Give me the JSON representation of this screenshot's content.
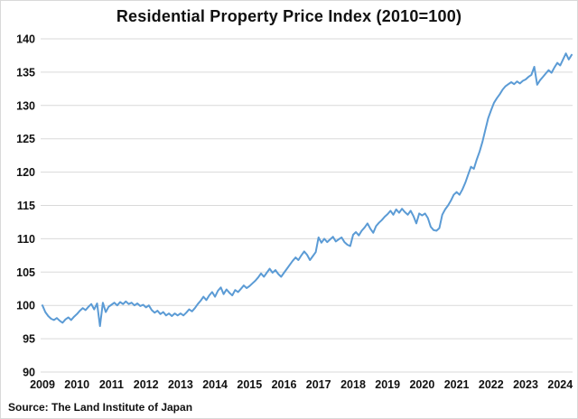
{
  "chart_data": {
    "type": "line",
    "title": "Residential Property Price Index (2010=100)",
    "xlabel": "",
    "ylabel": "",
    "ylim": [
      90,
      140
    ],
    "y_ticks": [
      90,
      95,
      100,
      105,
      110,
      115,
      120,
      125,
      130,
      135,
      140
    ],
    "x_ticks": [
      2009,
      2010,
      2011,
      2012,
      2013,
      2014,
      2015,
      2016,
      2017,
      2018,
      2019,
      2020,
      2021,
      2022,
      2023,
      2024
    ],
    "grid": "horizontal",
    "legend": "none",
    "series": [
      {
        "name": "Residential Property Price Index",
        "color": "#5B9BD5",
        "start_year": 2009,
        "points_per_year": 12,
        "values": [
          100.0,
          99.0,
          98.4,
          98.0,
          97.8,
          98.1,
          97.7,
          97.4,
          97.9,
          98.2,
          97.8,
          98.3,
          98.7,
          99.2,
          99.6,
          99.3,
          99.8,
          100.2,
          99.4,
          100.3,
          96.9,
          100.4,
          99.0,
          99.8,
          100.1,
          100.4,
          100.0,
          100.5,
          100.2,
          100.6,
          100.2,
          100.4,
          100.0,
          100.3,
          99.9,
          100.1,
          99.7,
          100.0,
          99.3,
          98.9,
          99.2,
          98.7,
          99.0,
          98.5,
          98.8,
          98.4,
          98.8,
          98.5,
          98.8,
          98.5,
          98.9,
          99.4,
          99.1,
          99.6,
          100.2,
          100.7,
          101.3,
          100.8,
          101.5,
          102.0,
          101.3,
          102.2,
          102.7,
          101.7,
          102.4,
          101.9,
          101.5,
          102.3,
          102.0,
          102.5,
          103.0,
          102.6,
          102.9,
          103.3,
          103.7,
          104.2,
          104.8,
          104.3,
          104.9,
          105.5,
          104.9,
          105.3,
          104.7,
          104.3,
          104.9,
          105.5,
          106.1,
          106.7,
          107.2,
          106.8,
          107.5,
          108.1,
          107.6,
          106.8,
          107.4,
          108.0,
          110.2,
          109.4,
          110.0,
          109.5,
          109.9,
          110.3,
          109.6,
          109.9,
          110.2,
          109.5,
          109.1,
          108.9,
          110.6,
          111.0,
          110.5,
          111.2,
          111.7,
          112.3,
          111.5,
          110.9,
          111.9,
          112.4,
          112.8,
          113.3,
          113.7,
          114.2,
          113.6,
          114.4,
          113.9,
          114.5,
          114.0,
          113.6,
          114.2,
          113.4,
          112.3,
          113.8,
          113.5,
          113.8,
          113.1,
          111.8,
          111.3,
          111.2,
          111.6,
          113.6,
          114.4,
          115.0,
          115.7,
          116.6,
          117.0,
          116.6,
          117.4,
          118.4,
          119.6,
          120.8,
          120.5,
          121.9,
          123.1,
          124.6,
          126.4,
          128.1,
          129.3,
          130.4,
          131.1,
          131.7,
          132.4,
          132.9,
          133.2,
          133.5,
          133.2,
          133.6,
          133.3,
          133.7,
          133.9,
          134.3,
          134.6,
          135.8,
          133.1,
          133.8,
          134.3,
          134.8,
          135.3,
          134.9,
          135.7,
          136.4,
          136.0,
          136.9,
          137.8,
          136.9,
          137.6
        ]
      }
    ]
  },
  "source": "Source: The Land Institute of Japan",
  "colors": {
    "line": "#5B9BD5",
    "grid": "#D9D9D9",
    "text": "#111111",
    "background": "#FFFFFF",
    "frame_border": "#D9D9D9"
  }
}
